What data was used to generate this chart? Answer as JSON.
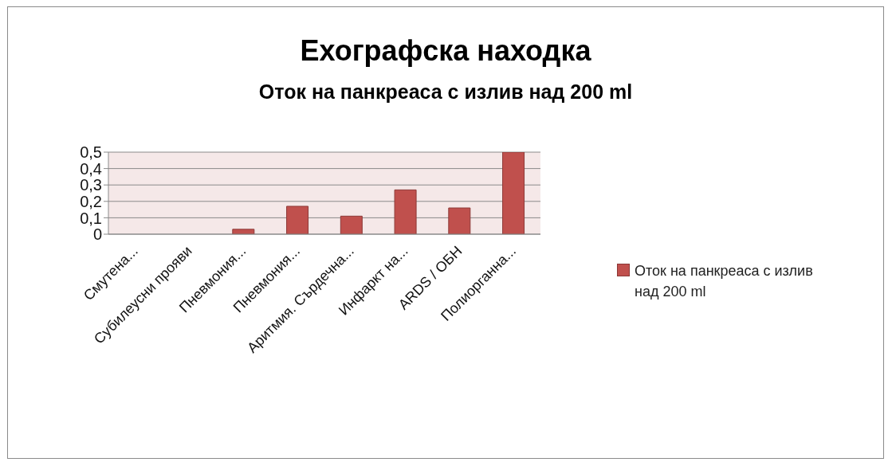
{
  "chart_data": {
    "type": "bar",
    "title": "Ехографска находка",
    "subtitle": "Оток на панкреаса с излив над 200 ml",
    "categories": [
      "Смутена...",
      "Субилеусни прояви",
      "Пневмония...",
      "Пневмония...",
      "Аритмия. Сърдечна...",
      "Инфаркт на...",
      "ARDS / ОБН",
      "Полиорганна..."
    ],
    "series": [
      {
        "name": "Оток на панкреаса с излив над 200 ml",
        "color": "#c0504d",
        "values": [
          0,
          0,
          0.03,
          0.17,
          0.11,
          0.27,
          0.16,
          0.5
        ]
      }
    ],
    "ylim": [
      0,
      0.5
    ],
    "yticks": [
      0,
      {
        "value": 0.1,
        "label": "0,1"
      },
      {
        "value": 0.2,
        "label": "0,2"
      },
      {
        "value": 0.3,
        "label": "0,3"
      },
      {
        "value": 0.4,
        "label": "0,4"
      },
      {
        "value": 0.5,
        "label": "0,5"
      }
    ],
    "grid": "y",
    "legend": "right"
  }
}
